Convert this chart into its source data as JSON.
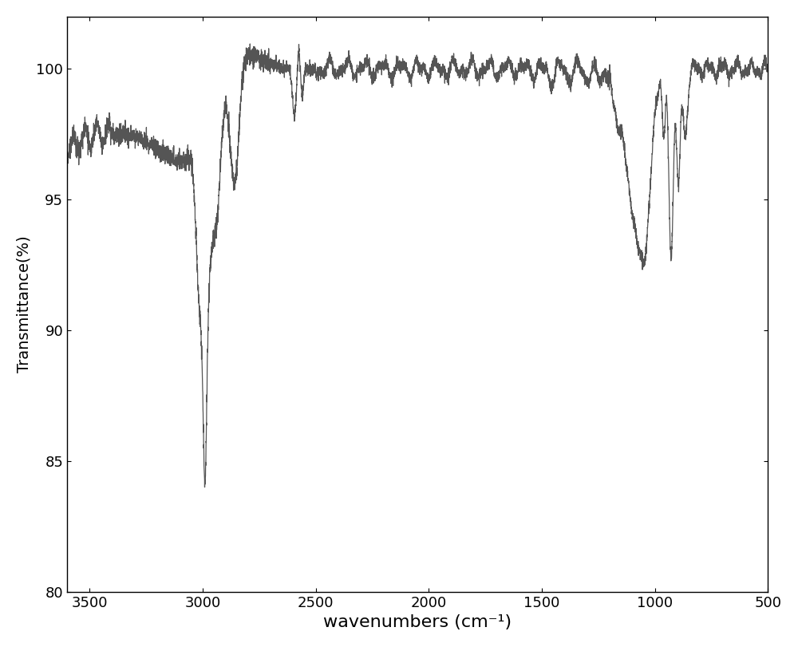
{
  "xlabel": "wavenumbers (cm⁻¹)",
  "ylabel": "Transmittance(%)",
  "xlim": [
    3600,
    500
  ],
  "ylim": [
    80,
    102
  ],
  "yticks": [
    80,
    85,
    90,
    95,
    100
  ],
  "xticks": [
    3500,
    3000,
    2500,
    2000,
    1500,
    1000,
    500
  ],
  "line_color": "#555555",
  "line_width": 0.9,
  "bg_color": "#ffffff",
  "xlabel_fontsize": 16,
  "ylabel_fontsize": 14,
  "tick_fontsize": 13
}
